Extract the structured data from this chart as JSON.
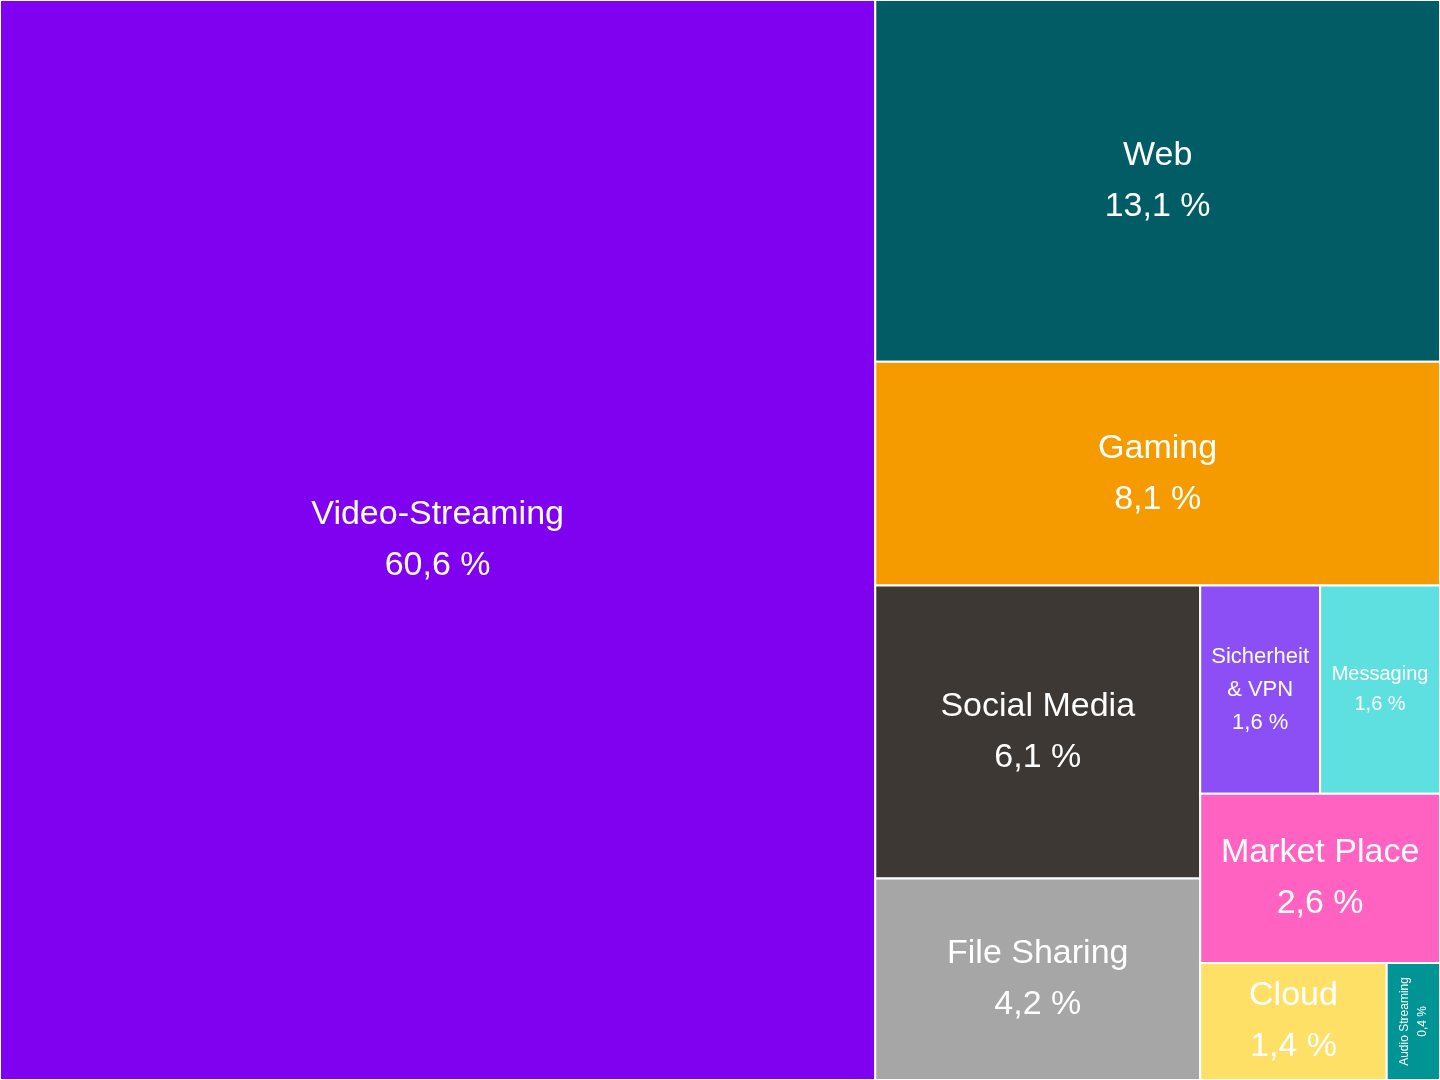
{
  "chart_data": {
    "type": "other",
    "categories": [
      "Video-Streaming",
      "Web",
      "Gaming",
      "Social Media",
      "File Sharing",
      "Sicherheit & VPN",
      "Messaging",
      "Market Place",
      "Cloud",
      "Audio Streaming"
    ],
    "values": [
      60.6,
      13.1,
      8.1,
      6.1,
      4.2,
      1.6,
      1.6,
      2.6,
      1.4,
      0.4
    ],
    "value_labels": [
      "60,6 %",
      "13,1 %",
      "8,1 %",
      "6,1 %",
      "4,2 %",
      "1,6 %",
      "1,6 %",
      "2,6 %",
      "1,4 %",
      "0,4 %"
    ],
    "colors": [
      "#8000f0",
      "#025c66",
      "#f59b00",
      "#3d3833",
      "#a6a6a6",
      "#8b4ff5",
      "#5ee0e0",
      "#ff62c0",
      "#ffe066",
      "#009494"
    ]
  }
}
